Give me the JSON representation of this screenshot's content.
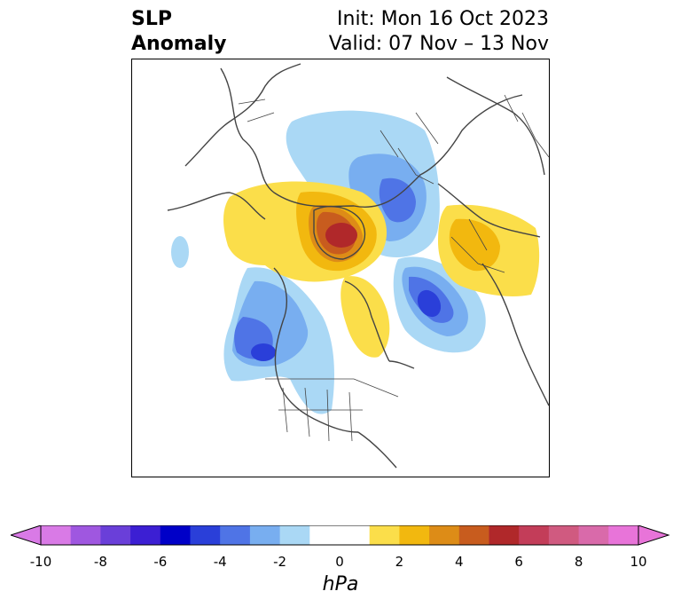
{
  "header": {
    "title_line1": "SLP",
    "title_line2": "Anomaly",
    "init": "Init: Mon 16 Oct 2023",
    "valid": "Valid: 07 Nov – 13 Nov"
  },
  "colorbar": {
    "unit": "hPa",
    "ticks": [
      "-10",
      "-8",
      "-6",
      "-4",
      "-2",
      "0",
      "2",
      "4",
      "6",
      "8",
      "10"
    ],
    "colors": [
      "#d97ae6",
      "#9f57e0",
      "#6a3fd9",
      "#3c1fd3",
      "#0000c8",
      "#2a3fd9",
      "#4f74e6",
      "#78aef0",
      "#aad8f5",
      "#ffffff",
      "#ffffff",
      "#fbde4a",
      "#f2b80f",
      "#dd8c17",
      "#c85c1e",
      "#b0282a",
      "#c33d59",
      "#d05a80",
      "#d96aaa",
      "#e874d9"
    ],
    "extend_left_color": "#d97ae6",
    "extend_right_color": "#e874d9"
  }
}
